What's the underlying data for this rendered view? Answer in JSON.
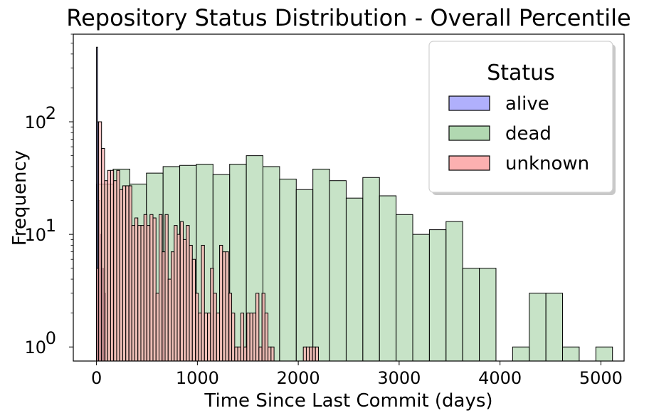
{
  "chart_data": {
    "type": "bar",
    "title": "Repository Status Distribution - Overall Percentile",
    "xlabel": "Time Since Last Commit (days)",
    "ylabel": "Frequency",
    "yscale": "log",
    "xlim": [
      -230,
      5230
    ],
    "ylim": [
      0.75,
      600
    ],
    "x_ticks": [
      0,
      1000,
      2000,
      3000,
      4000,
      5000
    ],
    "y_ticks": [
      {
        "value": 1,
        "base": "10",
        "exp": "0"
      },
      {
        "value": 10,
        "base": "10",
        "exp": "1"
      },
      {
        "value": 100,
        "base": "10",
        "exp": "2"
      }
    ],
    "grid": false,
    "legend": {
      "title": "Status",
      "position": "upper right"
    },
    "series": [
      {
        "name": "alive",
        "color": "#b0b0fc",
        "bin_width": 10,
        "bins": [
          [
            0,
            460
          ],
          [
            10,
            100
          ],
          [
            20,
            20
          ],
          [
            40,
            10
          ],
          [
            60,
            5
          ],
          [
            80,
            3
          ]
        ]
      },
      {
        "name": "dead",
        "color": "#b1d8b1",
        "bin_width": 165,
        "bins": [
          [
            0,
            28
          ],
          [
            165,
            38
          ],
          [
            330,
            28
          ],
          [
            495,
            35
          ],
          [
            660,
            40
          ],
          [
            825,
            41
          ],
          [
            990,
            42
          ],
          [
            1155,
            34
          ],
          [
            1320,
            42
          ],
          [
            1485,
            50
          ],
          [
            1650,
            40
          ],
          [
            1815,
            31
          ],
          [
            1980,
            25
          ],
          [
            2145,
            38
          ],
          [
            2310,
            30
          ],
          [
            2475,
            21
          ],
          [
            2640,
            32
          ],
          [
            2805,
            22
          ],
          [
            2970,
            15
          ],
          [
            3135,
            10
          ],
          [
            3300,
            11
          ],
          [
            3465,
            13
          ],
          [
            3630,
            5
          ],
          [
            3795,
            5
          ],
          [
            3960,
            0
          ],
          [
            4125,
            1
          ],
          [
            4290,
            3
          ],
          [
            4455,
            3
          ],
          [
            4620,
            1
          ],
          [
            4785,
            0
          ],
          [
            4950,
            1
          ]
        ]
      },
      {
        "name": "unknown",
        "color": "#fcb0b0",
        "bin_width": 30,
        "bins": [
          [
            0,
            5
          ],
          [
            20,
            100
          ],
          [
            50,
            58
          ],
          [
            80,
            30
          ],
          [
            110,
            37
          ],
          [
            140,
            37
          ],
          [
            170,
            30
          ],
          [
            200,
            37
          ],
          [
            230,
            25
          ],
          [
            260,
            27
          ],
          [
            290,
            27
          ],
          [
            320,
            27
          ],
          [
            350,
            12
          ],
          [
            380,
            14
          ],
          [
            410,
            12
          ],
          [
            440,
            12
          ],
          [
            470,
            15
          ],
          [
            500,
            12
          ],
          [
            530,
            15
          ],
          [
            560,
            14
          ],
          [
            590,
            3
          ],
          [
            620,
            15
          ],
          [
            650,
            7
          ],
          [
            680,
            15
          ],
          [
            710,
            4
          ],
          [
            740,
            7
          ],
          [
            770,
            12
          ],
          [
            800,
            10
          ],
          [
            830,
            13
          ],
          [
            860,
            9
          ],
          [
            890,
            12
          ],
          [
            920,
            8
          ],
          [
            950,
            6
          ],
          [
            980,
            3
          ],
          [
            1010,
            2
          ],
          [
            1040,
            8
          ],
          [
            1070,
            2
          ],
          [
            1100,
            2
          ],
          [
            1130,
            5
          ],
          [
            1160,
            3
          ],
          [
            1190,
            2
          ],
          [
            1220,
            8
          ],
          [
            1250,
            7
          ],
          [
            1280,
            7
          ],
          [
            1310,
            3
          ],
          [
            1340,
            2
          ],
          [
            1370,
            1
          ],
          [
            1400,
            1
          ],
          [
            1430,
            2
          ],
          [
            1460,
            1
          ],
          [
            1490,
            2
          ],
          [
            1520,
            2
          ],
          [
            1550,
            2
          ],
          [
            1580,
            3
          ],
          [
            1610,
            1
          ],
          [
            1640,
            3
          ],
          [
            1670,
            2
          ],
          [
            1700,
            1
          ],
          [
            1730,
            1
          ],
          [
            1760,
            0
          ],
          [
            1790,
            0
          ],
          [
            2050,
            1
          ],
          [
            2080,
            1
          ],
          [
            2110,
            1
          ],
          [
            2140,
            1
          ],
          [
            2170,
            1
          ]
        ]
      }
    ]
  }
}
